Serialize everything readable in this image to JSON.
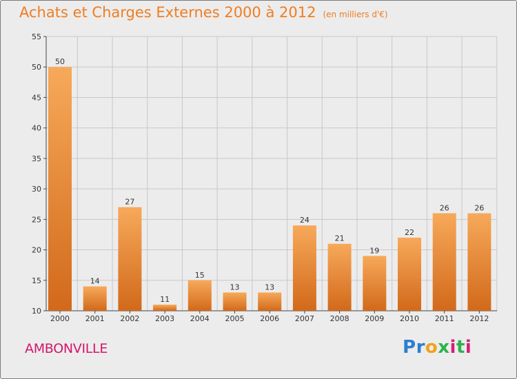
{
  "title": "Achats et Charges Externes 2000 à 2012",
  "unit": "(en milliers d'€)",
  "town": "AMBONVILLE",
  "logo": {
    "letters": [
      "P",
      "r",
      "o",
      "x",
      "i",
      "t",
      "i"
    ],
    "colors": [
      "#2a7fd0",
      "#2a7fd0",
      "#f2a21c",
      "#2bb34a",
      "#d81e7c",
      "#2bb34a",
      "#d81e7c"
    ]
  },
  "colors": {
    "bar_light": "#f7a95a",
    "bar_dark": "#d2691a",
    "title": "#ef7d21",
    "town": "#d2166c",
    "grid": "#c8c8c8"
  },
  "chart_data": {
    "type": "bar",
    "categories": [
      "2000",
      "2001",
      "2002",
      "2003",
      "2004",
      "2005",
      "2006",
      "2007",
      "2008",
      "2009",
      "2010",
      "2011",
      "2012"
    ],
    "values": [
      50,
      14,
      27,
      11,
      15,
      13,
      13,
      24,
      21,
      19,
      22,
      26,
      26
    ],
    "ylim": [
      10,
      55
    ],
    "yticks": [
      10,
      15,
      20,
      25,
      30,
      35,
      40,
      45,
      50,
      55
    ],
    "grid": true
  }
}
